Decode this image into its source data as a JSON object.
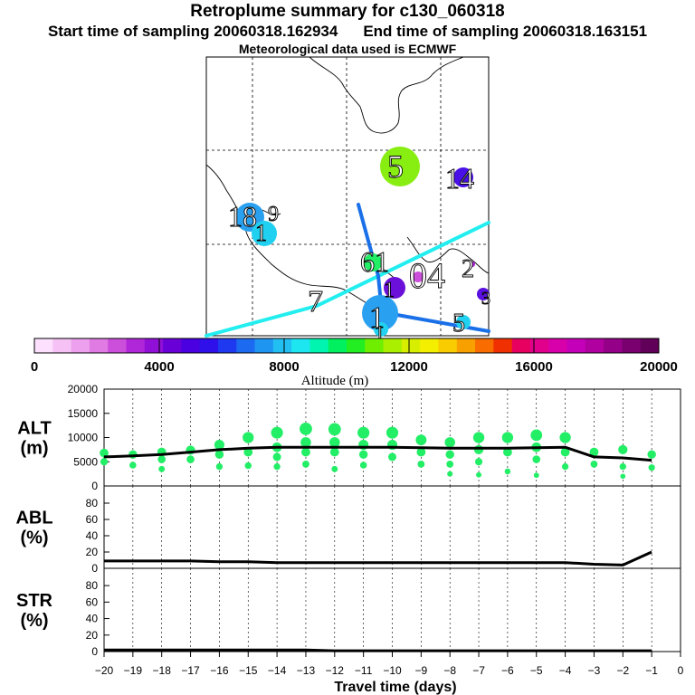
{
  "header": {
    "title": "Retroplume summary for c130_060318",
    "start_label": "Start time of sampling 20060318.162934",
    "end_label": "End time of sampling 20060318.163151",
    "met_label": "Meteorological data used is ECMWF"
  },
  "map": {
    "day_labels": [
      {
        "text": "5"
      },
      {
        "text": "14"
      },
      {
        "text": "18"
      },
      {
        "text": "9"
      },
      {
        "text": "1"
      },
      {
        "text": "61"
      },
      {
        "text": "04"
      },
      {
        "text": "2"
      },
      {
        "text": "7"
      },
      {
        "text": "1"
      },
      {
        "text": "3"
      },
      {
        "text": "1"
      },
      {
        "text": "5"
      },
      {
        "text": "1"
      }
    ]
  },
  "colorbar": {
    "title": "Altitude (m)",
    "ticks": [
      "0",
      "4000",
      "8000",
      "12000",
      "16000",
      "20000"
    ],
    "colors": [
      "#fde0fd",
      "#f6c2f6",
      "#eda0ee",
      "#e07be3",
      "#cc4fdc",
      "#b026d9",
      "#9010d8",
      "#6a00d8",
      "#4a00e0",
      "#2f10ea",
      "#1f39f0",
      "#1c6af0",
      "#1f95f2",
      "#22bff2",
      "#1ee6f0",
      "#00f5b0",
      "#00f060",
      "#22ee22",
      "#70ee00",
      "#aaee00",
      "#d8ee00",
      "#f4ee00",
      "#f8cc00",
      "#f8a000",
      "#f86c00",
      "#f03000",
      "#e80060",
      "#e0008c",
      "#d800aa",
      "#c400b8",
      "#b000a0",
      "#940088",
      "#7a0070",
      "#600058"
    ]
  },
  "chart_data": [
    {
      "type": "line",
      "name": "ALT",
      "ylabel": "ALT\n(m)",
      "ylabel_line1": "ALT",
      "ylabel_line2": "(m)",
      "ylim": [
        0,
        20000
      ],
      "yticks": [
        "0",
        "5000",
        "10000",
        "15000",
        "20000"
      ],
      "x": [
        -20,
        -19,
        -18,
        -17,
        -16,
        -15,
        -14,
        -13,
        -12,
        -11,
        -10,
        -9,
        -8,
        -7,
        -6,
        -5,
        -4,
        -3,
        -2,
        -1
      ],
      "series": [
        {
          "name": "median altitude",
          "color": "#000000",
          "values": [
            6000,
            6200,
            6500,
            7000,
            7500,
            7800,
            8000,
            8000,
            8000,
            8000,
            8000,
            7900,
            7800,
            7800,
            7800,
            7900,
            8000,
            6000,
            5800,
            5300
          ]
        }
      ],
      "scatter": {
        "color": "#22ee66",
        "points": [
          [
            -20,
            6800
          ],
          [
            -20,
            5000
          ],
          [
            -19,
            6500
          ],
          [
            -19,
            4300
          ],
          [
            -18,
            7000
          ],
          [
            -18,
            5500
          ],
          [
            -18,
            3500
          ],
          [
            -17,
            7400
          ],
          [
            -17,
            5500
          ],
          [
            -16,
            8500
          ],
          [
            -16,
            6500
          ],
          [
            -16,
            4000
          ],
          [
            -15,
            10000
          ],
          [
            -15,
            7000
          ],
          [
            -15,
            4200
          ],
          [
            -14,
            11000
          ],
          [
            -14,
            8000
          ],
          [
            -14,
            6000
          ],
          [
            -14,
            4000
          ],
          [
            -13,
            11800
          ],
          [
            -13,
            9000
          ],
          [
            -13,
            7000
          ],
          [
            -13,
            4500
          ],
          [
            -12,
            11700
          ],
          [
            -12,
            9000
          ],
          [
            -12,
            7000
          ],
          [
            -12,
            3500
          ],
          [
            -11,
            11000
          ],
          [
            -11,
            8500
          ],
          [
            -11,
            6500
          ],
          [
            -11,
            4300
          ],
          [
            -10,
            11000
          ],
          [
            -10,
            8500
          ],
          [
            -10,
            6000
          ],
          [
            -9,
            9500
          ],
          [
            -9,
            7000
          ],
          [
            -9,
            4500
          ],
          [
            -8,
            9000
          ],
          [
            -8,
            6500
          ],
          [
            -8,
            4500
          ],
          [
            -8,
            2500
          ],
          [
            -7,
            10000
          ],
          [
            -7,
            7500
          ],
          [
            -7,
            5000
          ],
          [
            -7,
            2300
          ],
          [
            -6,
            10000
          ],
          [
            -6,
            7000
          ],
          [
            -6,
            3000
          ],
          [
            -5,
            10500
          ],
          [
            -5,
            8000
          ],
          [
            -5,
            5500
          ],
          [
            -5,
            2200
          ],
          [
            -4,
            10000
          ],
          [
            -4,
            7000
          ],
          [
            -4,
            4000
          ],
          [
            -3,
            7000
          ],
          [
            -3,
            4500
          ],
          [
            -2,
            7500
          ],
          [
            -2,
            4000
          ],
          [
            -2,
            2000
          ],
          [
            -1,
            6500
          ],
          [
            -1,
            3800
          ]
        ]
      }
    },
    {
      "type": "line",
      "name": "ABL",
      "ylabel": "ABL\n(%)",
      "ylabel_line1": "ABL",
      "ylabel_line2": "(%)",
      "ylim": [
        0,
        90
      ],
      "yticks": [
        "0",
        "20",
        "40",
        "60",
        "80"
      ],
      "x": [
        -20,
        -19,
        -18,
        -17,
        -16,
        -15,
        -14,
        -13,
        -12,
        -11,
        -10,
        -9,
        -8,
        -7,
        -6,
        -5,
        -4,
        -3,
        -2,
        -1
      ],
      "series": [
        {
          "name": "ABL fraction",
          "color": "#000000",
          "values": [
            9,
            9,
            9,
            9,
            8,
            8,
            7,
            7,
            7,
            7,
            7,
            7,
            7,
            7,
            7,
            7,
            7,
            5,
            4,
            20
          ]
        }
      ]
    },
    {
      "type": "line",
      "name": "STR",
      "ylabel": "STR\n(%)",
      "ylabel_line1": "STR",
      "ylabel_line2": "(%)",
      "ylim": [
        0,
        90
      ],
      "yticks": [
        "0",
        "20",
        "40",
        "60",
        "80"
      ],
      "x": [
        -20,
        -19,
        -18,
        -17,
        -16,
        -15,
        -14,
        -13,
        -12,
        -11,
        -10,
        -9,
        -8,
        -7,
        -6,
        -5,
        -4,
        -3,
        -2,
        -1
      ],
      "series": [
        {
          "name": "STR fraction",
          "color": "#000000",
          "values": [
            2,
            2,
            2,
            2,
            2,
            2,
            2,
            2,
            1,
            1,
            1,
            1,
            1,
            1,
            1,
            1,
            1,
            1,
            1,
            1
          ]
        }
      ]
    }
  ],
  "xaxis": {
    "label": "Travel time (days)",
    "ticks": [
      "−20",
      "−19",
      "−18",
      "−17",
      "−16",
      "−15",
      "−14",
      "−13",
      "−12",
      "−11",
      "−10",
      "−9",
      "−8",
      "−7",
      "−6",
      "−5",
      "−4",
      "−3",
      "−2",
      "−1",
      "0"
    ]
  }
}
